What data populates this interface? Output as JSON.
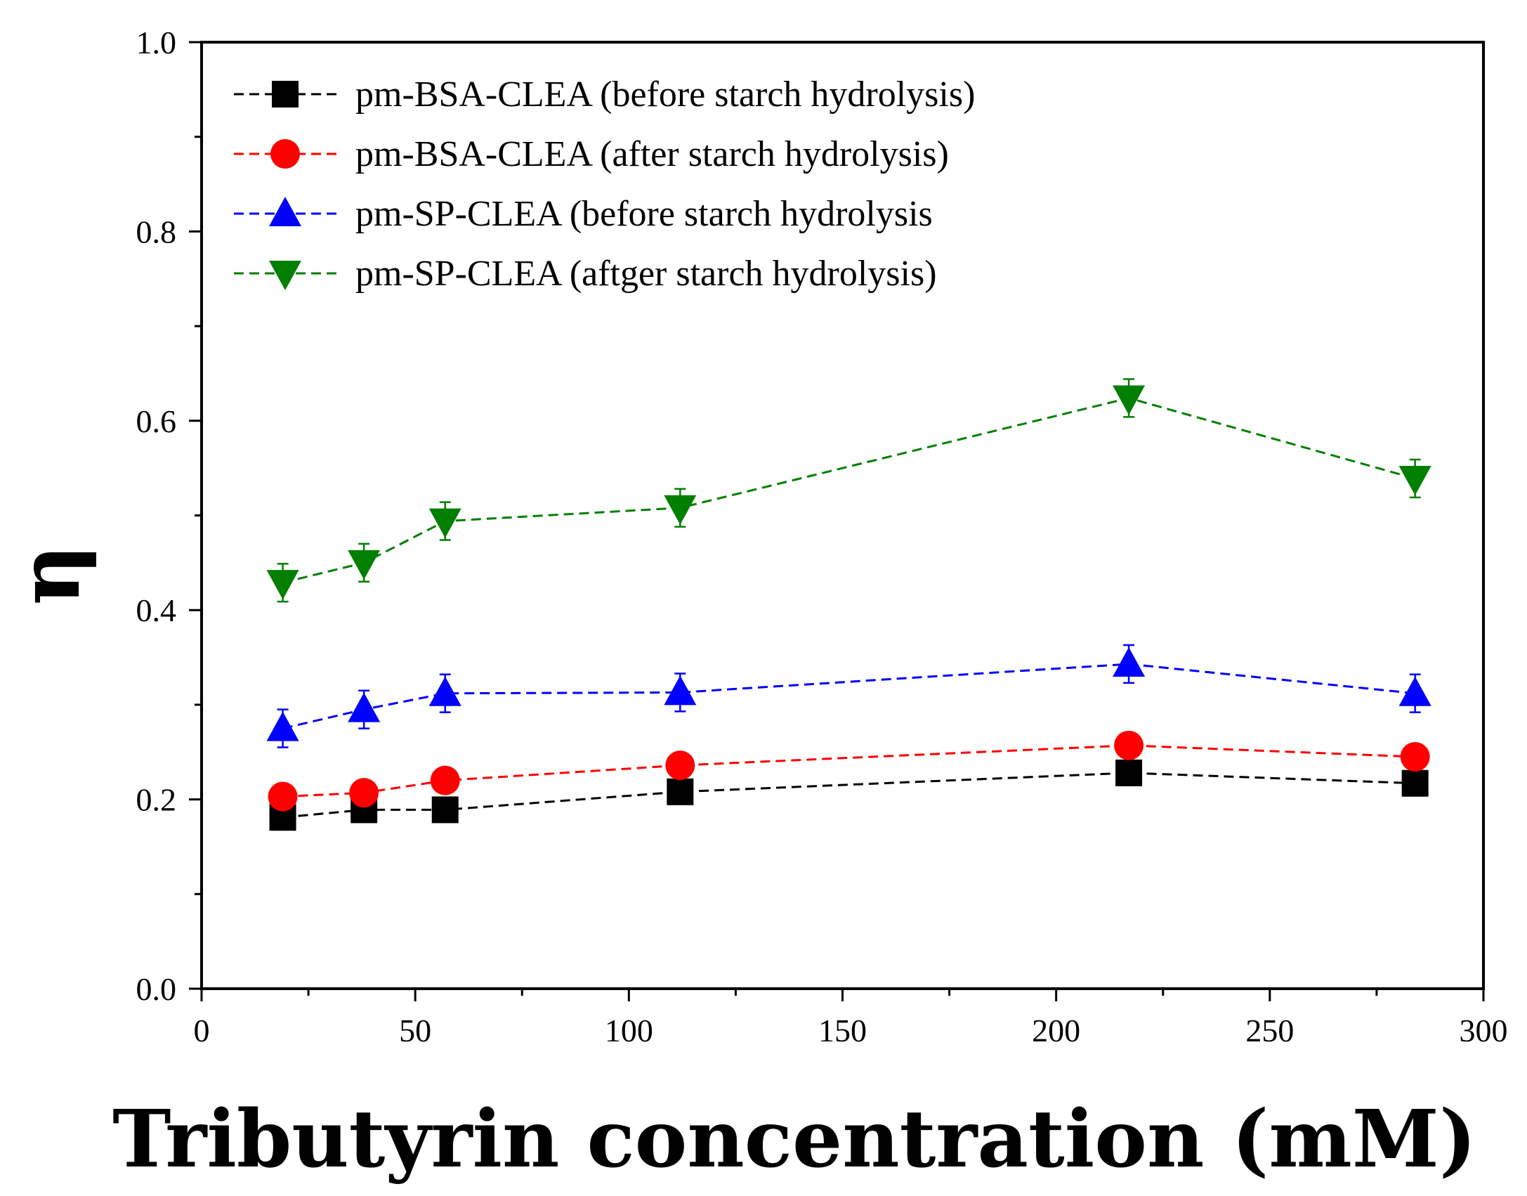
{
  "chart_data": {
    "type": "line",
    "title": "",
    "xlabel": "Tributyrin concentration (mM)",
    "ylabel": "η",
    "xlim": [
      0,
      300
    ],
    "ylim": [
      0.0,
      1.0
    ],
    "xticks": [
      0,
      50,
      100,
      150,
      200,
      250,
      300
    ],
    "yticks": [
      0.0,
      0.2,
      0.4,
      0.6,
      0.8,
      1.0
    ],
    "xtick_labels": [
      "0",
      "50",
      "100",
      "150",
      "200",
      "250",
      "300"
    ],
    "ytick_labels": [
      "0.0",
      "0.2",
      "0.4",
      "0.6",
      "0.8",
      "1.0"
    ],
    "legend_position": "top-left",
    "grid": false,
    "x": [
      19,
      38,
      57,
      112,
      217,
      284
    ],
    "series": [
      {
        "name": "pm-BSA-CLEA (before starch hydrolysis)",
        "color": "#000000",
        "marker": "square",
        "values": [
          0.181,
          0.189,
          0.189,
          0.208,
          0.228,
          0.217
        ],
        "errors": [
          0.006,
          0.006,
          0.006,
          0.006,
          0.006,
          0.006
        ]
      },
      {
        "name": "pm-BSA-CLEA (after starch hydrolysis)",
        "color": "#ff0000",
        "marker": "circle",
        "values": [
          0.203,
          0.207,
          0.22,
          0.236,
          0.257,
          0.245
        ],
        "errors": [
          0.006,
          0.006,
          0.006,
          0.006,
          0.006,
          0.006
        ]
      },
      {
        "name": "pm-SP-CLEA (before starch hydrolysis",
        "color": "#0000ff",
        "marker": "triangle-up",
        "values": [
          0.275,
          0.295,
          0.312,
          0.313,
          0.343,
          0.312
        ],
        "errors": [
          0.02,
          0.02,
          0.02,
          0.02,
          0.02,
          0.02
        ]
      },
      {
        "name": "pm-SP-CLEA (aftger starch hydrolysis)",
        "color": "#007f00",
        "marker": "triangle-down",
        "values": [
          0.429,
          0.45,
          0.494,
          0.508,
          0.624,
          0.539
        ],
        "errors": [
          0.02,
          0.02,
          0.02,
          0.02,
          0.02,
          0.02
        ]
      }
    ]
  }
}
